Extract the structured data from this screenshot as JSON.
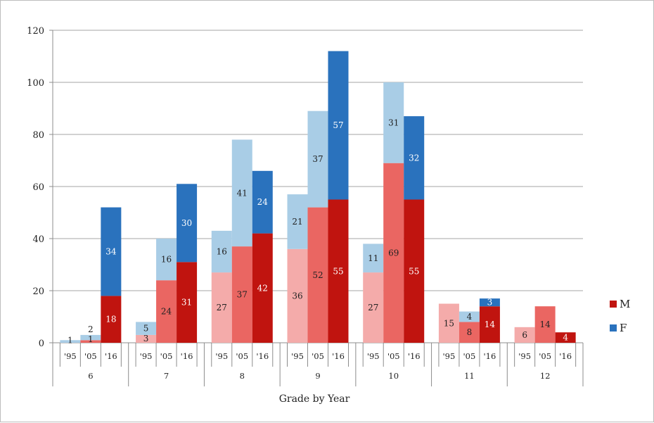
{
  "chart_data": {
    "type": "bar",
    "stacked": true,
    "xlabel": "Grade by Year",
    "ylabel": "",
    "ylim": [
      0,
      120
    ],
    "yticks": [
      0,
      20,
      40,
      60,
      80,
      100,
      120
    ],
    "grid": true,
    "legend_position": "right",
    "groups": [
      "6",
      "7",
      "8",
      "9",
      "10",
      "11",
      "12"
    ],
    "years": [
      "'95",
      "'05",
      "'16"
    ],
    "series": [
      {
        "name": "M",
        "legend_color": "#c0140f",
        "values": [
          [
            0,
            1,
            18
          ],
          [
            3,
            24,
            31
          ],
          [
            27,
            37,
            42
          ],
          [
            36,
            52,
            55
          ],
          [
            27,
            69,
            55
          ],
          [
            15,
            8,
            14
          ],
          [
            6,
            14,
            4
          ]
        ],
        "labels": [
          [
            "",
            "1",
            "18"
          ],
          [
            "3",
            "24",
            "31"
          ],
          [
            "27",
            "37",
            "42"
          ],
          [
            "36",
            "52",
            "55"
          ],
          [
            "27",
            "69",
            "55"
          ],
          [
            "15",
            "8",
            "14"
          ],
          [
            "6",
            "14",
            "4"
          ]
        ]
      },
      {
        "name": "F",
        "legend_color": "#2a72bd",
        "values": [
          [
            1,
            2,
            34
          ],
          [
            5,
            16,
            30
          ],
          [
            16,
            41,
            24
          ],
          [
            21,
            37,
            57
          ],
          [
            11,
            31,
            32
          ],
          [
            0,
            4,
            3
          ],
          [
            0,
            0,
            0
          ]
        ],
        "labels": [
          [
            "1",
            "2",
            "34"
          ],
          [
            "5",
            "16",
            "30"
          ],
          [
            "16",
            "41",
            "24"
          ],
          [
            "21",
            "37",
            "57"
          ],
          [
            "11",
            "31",
            "32"
          ],
          [
            "",
            "4",
            "3"
          ],
          [
            "",
            "",
            ""
          ]
        ]
      }
    ],
    "colors": {
      "M": [
        "#f4abaa",
        "#ea6662",
        "#c0140f"
      ],
      "F": [
        "#a9cde6",
        "#a9cde6",
        "#2a72bd"
      ]
    },
    "label_colors": {
      "M": [
        "#222222",
        "#222222",
        "#ffffff"
      ],
      "F": [
        "#222222",
        "#222222",
        "#ffffff"
      ]
    }
  }
}
